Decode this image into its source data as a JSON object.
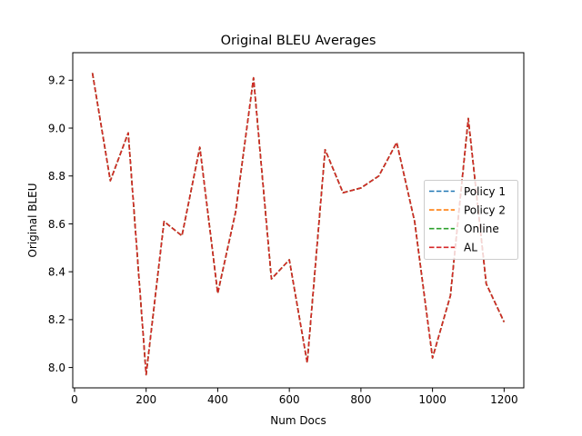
{
  "chart_data": {
    "type": "line",
    "title": "Original BLEU Averages",
    "xlabel": "Num Docs",
    "ylabel": "Original BLEU",
    "xlim": [
      -5,
      1255
    ],
    "ylim": [
      7.915,
      9.315
    ],
    "xticks": [
      0,
      200,
      400,
      600,
      800,
      1000,
      1200
    ],
    "yticks": [
      8.0,
      8.2,
      8.4,
      8.6,
      8.8,
      9.0,
      9.2
    ],
    "xtick_labels": [
      "0",
      "200",
      "400",
      "600",
      "800",
      "1000",
      "1200"
    ],
    "ytick_labels": [
      "8.0",
      "8.2",
      "8.4",
      "8.6",
      "8.8",
      "9.0",
      "9.2"
    ],
    "grid": false,
    "legend_position": "center-right",
    "x": [
      50,
      100,
      150,
      200,
      250,
      300,
      350,
      400,
      450,
      500,
      550,
      600,
      650,
      700,
      750,
      800,
      850,
      900,
      950,
      1000,
      1050,
      1100,
      1150,
      1200
    ],
    "series": [
      {
        "name": "Policy 1",
        "color": "#1f77b4",
        "values": [
          9.23,
          8.78,
          8.98,
          7.97,
          8.61,
          8.55,
          8.92,
          8.31,
          8.65,
          9.21,
          8.37,
          8.45,
          8.02,
          8.91,
          8.73,
          8.75,
          8.8,
          8.94,
          8.61,
          8.04,
          8.3,
          9.04,
          8.35,
          8.19
        ]
      },
      {
        "name": "Policy 2",
        "color": "#ff7f0e",
        "values": [
          9.23,
          8.78,
          8.98,
          7.97,
          8.61,
          8.55,
          8.92,
          8.31,
          8.65,
          9.21,
          8.37,
          8.45,
          8.02,
          8.91,
          8.73,
          8.75,
          8.8,
          8.94,
          8.61,
          8.04,
          8.3,
          9.04,
          8.35,
          8.19
        ]
      },
      {
        "name": "Online",
        "color": "#2ca02c",
        "values": [
          9.23,
          8.78,
          8.98,
          7.97,
          8.61,
          8.55,
          8.92,
          8.31,
          8.65,
          9.21,
          8.37,
          8.45,
          8.02,
          8.91,
          8.73,
          8.75,
          8.8,
          8.94,
          8.61,
          8.04,
          8.3,
          9.04,
          8.35,
          8.19
        ]
      },
      {
        "name": "AL",
        "color": "#d62728",
        "values": [
          9.23,
          8.78,
          8.98,
          7.97,
          8.61,
          8.55,
          8.92,
          8.31,
          8.65,
          9.21,
          8.37,
          8.45,
          8.02,
          8.91,
          8.73,
          8.75,
          8.8,
          8.94,
          8.61,
          8.04,
          8.3,
          9.04,
          8.35,
          8.19
        ]
      }
    ]
  }
}
